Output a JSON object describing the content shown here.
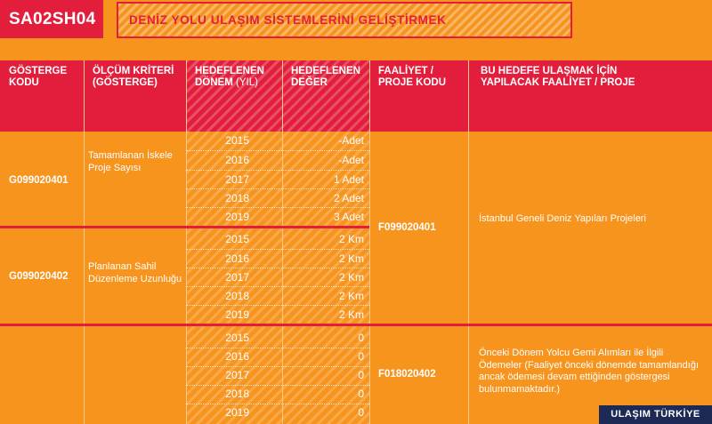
{
  "header": {
    "code": "SA02SH04",
    "title": "DENİZ YOLU ULAŞIM SİSTEMLERİNİ GELİŞTİRMEK"
  },
  "columns": {
    "indicator_code": "GÖSTERGE KODU",
    "criterion": "ÖLÇÜM KRİTERİ (GÖSTERGE)",
    "target_period": "HEDEFLENEN DÖNEM",
    "target_period_unit": "(YIL)",
    "target_value": "HEDEFLENEN DEĞER",
    "activity_code": "FAALİYET / PROJE KODU",
    "activity": "BU HEDEFE ULAŞMAK İÇİN YAPILACAK FAALİYET / PROJE"
  },
  "groups": [
    {
      "indicator_code": "G099020401",
      "criterion": "Tamamlanan İskele Proje Sayısı",
      "rows": [
        {
          "year": "2015",
          "value": "-Adet"
        },
        {
          "year": "2016",
          "value": "-Adet"
        },
        {
          "year": "2017",
          "value": "1 Adet"
        },
        {
          "year": "2018",
          "value": "2 Adet"
        },
        {
          "year": "2019",
          "value": "3 Adet"
        }
      ]
    },
    {
      "indicator_code": "G099020402",
      "criterion": "Planlanan Sahil Düzenleme Uzunluğu",
      "rows": [
        {
          "year": "2015",
          "value": "2 Km"
        },
        {
          "year": "2016",
          "value": "2 Km"
        },
        {
          "year": "2017",
          "value": "2 Km"
        },
        {
          "year": "2018",
          "value": "2 Km"
        },
        {
          "year": "2019",
          "value": "2 Km"
        }
      ]
    },
    {
      "indicator_code": "",
      "criterion": "",
      "rows": [
        {
          "year": "2015",
          "value": "0"
        },
        {
          "year": "2016",
          "value": "0"
        },
        {
          "year": "2017",
          "value": "0"
        },
        {
          "year": "2018",
          "value": "0"
        },
        {
          "year": "2019",
          "value": "0"
        }
      ]
    }
  ],
  "activities": [
    {
      "code": "F099020401",
      "text": "İstanbul Geneli Deniz Yapıları Projeleri"
    },
    {
      "code": "F018020402",
      "text": "Önceki Dönem Yolcu Gemi Alımları ile İlgili Ödemeler (Faaliyet önceki dönemde tamamlandığı ancak ödemesi devam ettiğinden göstergesi bulunmamaktadır.)"
    }
  ],
  "watermark": "ULAŞIM TÜRKİYE",
  "colors": {
    "background": "#f7941d",
    "accent_red": "#e31e3c",
    "watermark_bg": "#1d2a55"
  }
}
